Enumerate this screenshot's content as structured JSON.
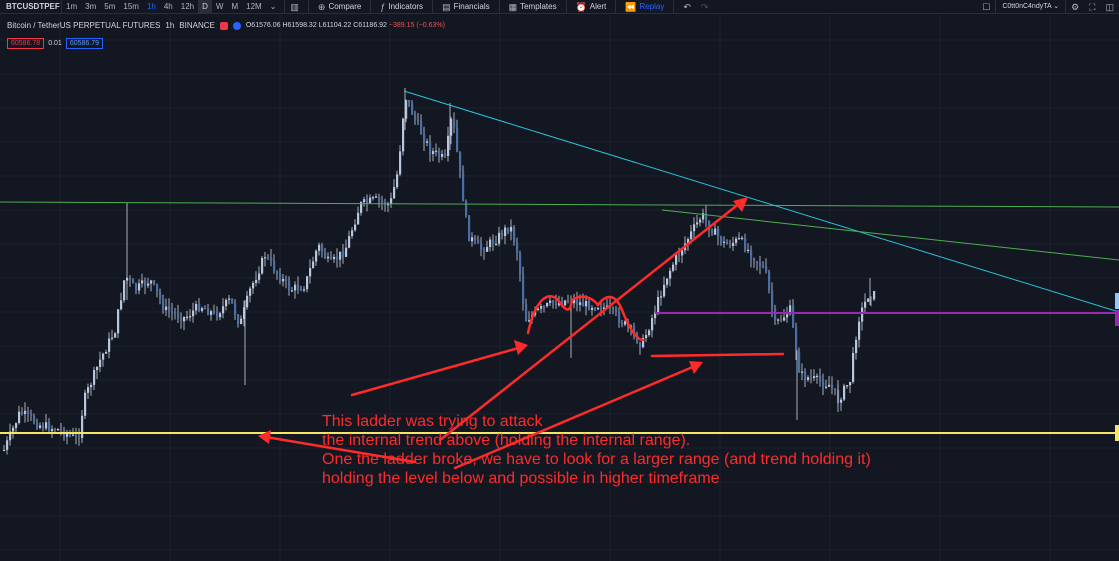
{
  "toolbar": {
    "symbol": "BTCUSDTPEF",
    "intervals": [
      "1m",
      "3m",
      "5m",
      "15m",
      "1h",
      "4h",
      "12h",
      "D",
      "W",
      "M",
      "12M"
    ],
    "active_interval": "1h",
    "compare_label": "Compare",
    "indicators_label": "Indicators",
    "financials_label": "Financials",
    "templates_label": "Templates",
    "alert_label": "Alert",
    "replay_label": "Replay",
    "user_label": "C0tt0nC4ndyTA"
  },
  "legend": {
    "title": "Bitcoin / TetherUS PERPETUAL FUTURES",
    "interval": "1h",
    "exchange": "BINANCE",
    "open": "O61576.06",
    "high": "H61598.32",
    "low": "L61104.22",
    "close": "C61186.92",
    "change": "−389.15 (−0.63%)"
  },
  "order": {
    "sell_price": "60586.78",
    "quantity": "0.01",
    "buy_price": "60586.79"
  },
  "annotation": {
    "lines": [
      "This ladder was trying to attack",
      "the internal trend above (holding the internal range).",
      "One the ladder broke, we have to look for a larger range (and trend holding it)",
      "holding the level below and possible in higher timeframe"
    ]
  },
  "colors": {
    "background": "#131722",
    "candle_body": "#b8c7e0",
    "wick": "#d1d4dc",
    "green_line": "#4caf50",
    "cyan_line": "#26c6da",
    "purple_line": "#9c27b0",
    "yellow_line": "#f5e663",
    "annotation": "#ff2b2b"
  }
}
